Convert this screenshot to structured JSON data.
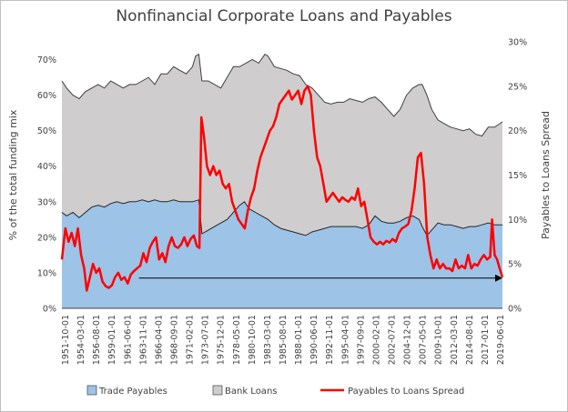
{
  "chart_data": {
    "type": "area",
    "title": "Nonfinancial Corporate Loans and Payables",
    "ylabel": "% of the total funding mix",
    "y2label": "Payables to Loans Spread",
    "ylim": [
      0,
      75
    ],
    "y2lim": [
      0,
      30
    ],
    "yticks": [
      "0%",
      "10%",
      "20%",
      "30%",
      "40%",
      "50%",
      "60%",
      "70%"
    ],
    "y2ticks": [
      "0%",
      "5%",
      "10%",
      "15%",
      "20%",
      "25%",
      "30%"
    ],
    "x_range": [
      1951.75,
      2021.75
    ],
    "xticks": [
      "1951-10-01",
      "1954-03-01",
      "1956-08-01",
      "1959-01-01",
      "1961-06-01",
      "1963-11-01",
      "1966-04-01",
      "1968-09-01",
      "1971-02-01",
      "1973-07-01",
      "1975-12-01",
      "1978-05-01",
      "1980-10-01",
      "1983-03-01",
      "1985-08-01",
      "1988-01-01",
      "1990-06-01",
      "1992-11-01",
      "1995-04-01",
      "1997-09-01",
      "2000-02-01",
      "2002-07-01",
      "2004-12-01",
      "2007-05-01",
      "2009-10-01",
      "2012-03-01",
      "2014-08-01",
      "2017-01-01",
      "2019-06-01"
    ],
    "legend_position": "bottom",
    "series": [
      {
        "name": "Trade Payables",
        "color": "#9dc3e6",
        "axis": "left",
        "points": [
          [
            1951.75,
            27
          ],
          [
            1952.5,
            26
          ],
          [
            1953.5,
            27
          ],
          [
            1954.5,
            25.5
          ],
          [
            1955.5,
            27
          ],
          [
            1956.5,
            28.5
          ],
          [
            1957.5,
            29
          ],
          [
            1958.5,
            28.5
          ],
          [
            1959.5,
            29.5
          ],
          [
            1960.5,
            30
          ],
          [
            1961.5,
            29.5
          ],
          [
            1962.5,
            30
          ],
          [
            1963.5,
            30
          ],
          [
            1964.5,
            30.5
          ],
          [
            1965.5,
            30
          ],
          [
            1966.5,
            30.5
          ],
          [
            1967.5,
            30
          ],
          [
            1968.5,
            30
          ],
          [
            1969.5,
            30.5
          ],
          [
            1970.5,
            30
          ],
          [
            1971.5,
            30
          ],
          [
            1972.5,
            30
          ],
          [
            1973.5,
            30.5
          ],
          [
            1974.0,
            21
          ],
          [
            1975.0,
            22
          ],
          [
            1976.0,
            23
          ],
          [
            1977.0,
            24
          ],
          [
            1978.0,
            25
          ],
          [
            1979.0,
            27
          ],
          [
            1980.0,
            29
          ],
          [
            1980.75,
            30
          ],
          [
            1981.5,
            28
          ],
          [
            1982.5,
            27
          ],
          [
            1983.5,
            26
          ],
          [
            1984.5,
            25
          ],
          [
            1985.5,
            23.5
          ],
          [
            1986.5,
            22.5
          ],
          [
            1987.5,
            22
          ],
          [
            1988.5,
            21.5
          ],
          [
            1989.5,
            21
          ],
          [
            1990.5,
            20.5
          ],
          [
            1991.5,
            21.5
          ],
          [
            1992.5,
            22
          ],
          [
            1993.5,
            22.5
          ],
          [
            1994.5,
            23
          ],
          [
            1995.5,
            23
          ],
          [
            1996.5,
            23
          ],
          [
            1997.5,
            23
          ],
          [
            1998.5,
            23
          ],
          [
            1999.5,
            22.5
          ],
          [
            2000.5,
            23.5
          ],
          [
            2001.5,
            26
          ],
          [
            2002.5,
            24.5
          ],
          [
            2003.5,
            24
          ],
          [
            2004.5,
            24
          ],
          [
            2005.5,
            24.5
          ],
          [
            2006.5,
            25.5
          ],
          [
            2007.5,
            26
          ],
          [
            2008.5,
            25
          ],
          [
            2009.0,
            23
          ],
          [
            2009.75,
            20.5
          ],
          [
            2010.5,
            22
          ],
          [
            2011.5,
            24
          ],
          [
            2012.5,
            23.5
          ],
          [
            2013.5,
            23.5
          ],
          [
            2014.5,
            23
          ],
          [
            2015.5,
            22.5
          ],
          [
            2016.5,
            23
          ],
          [
            2017.5,
            23
          ],
          [
            2018.5,
            23.5
          ],
          [
            2019.5,
            24
          ],
          [
            2020.5,
            23.5
          ],
          [
            2021.75,
            23.5
          ]
        ]
      },
      {
        "name": "Bank Loans",
        "color": "#cfcdcd",
        "axis": "left",
        "points": [
          [
            1951.75,
            64
          ],
          [
            1952.5,
            62
          ],
          [
            1953.5,
            60
          ],
          [
            1954.5,
            59
          ],
          [
            1955.5,
            61
          ],
          [
            1956.5,
            62
          ],
          [
            1957.5,
            63
          ],
          [
            1958.5,
            62
          ],
          [
            1959.5,
            64
          ],
          [
            1960.5,
            63
          ],
          [
            1961.5,
            62
          ],
          [
            1962.5,
            63
          ],
          [
            1963.5,
            63
          ],
          [
            1964.5,
            64
          ],
          [
            1965.5,
            65
          ],
          [
            1966.5,
            63
          ],
          [
            1967.5,
            66
          ],
          [
            1968.5,
            66
          ],
          [
            1969.5,
            68
          ],
          [
            1970.5,
            67
          ],
          [
            1971.5,
            66
          ],
          [
            1972.5,
            68
          ],
          [
            1973.0,
            71
          ],
          [
            1973.5,
            71.5
          ],
          [
            1974.0,
            64
          ],
          [
            1975.0,
            64
          ],
          [
            1976.0,
            63
          ],
          [
            1977.0,
            62
          ],
          [
            1978.0,
            65
          ],
          [
            1979.0,
            68
          ],
          [
            1980.0,
            68
          ],
          [
            1981.0,
            69
          ],
          [
            1982.0,
            70
          ],
          [
            1983.0,
            69
          ],
          [
            1984.0,
            71.5
          ],
          [
            1984.5,
            71
          ],
          [
            1985.5,
            68
          ],
          [
            1986.5,
            67.5
          ],
          [
            1987.5,
            67
          ],
          [
            1988.5,
            66
          ],
          [
            1989.5,
            65.5
          ],
          [
            1990.5,
            63
          ],
          [
            1991.5,
            62
          ],
          [
            1992.5,
            60
          ],
          [
            1993.5,
            58
          ],
          [
            1994.5,
            57.5
          ],
          [
            1995.5,
            58
          ],
          [
            1996.5,
            58
          ],
          [
            1997.5,
            59
          ],
          [
            1998.5,
            58.5
          ],
          [
            1999.5,
            58
          ],
          [
            2000.5,
            59
          ],
          [
            2001.5,
            59.5
          ],
          [
            2002.5,
            58
          ],
          [
            2003.5,
            56
          ],
          [
            2004.5,
            54
          ],
          [
            2005.5,
            56
          ],
          [
            2006.5,
            60
          ],
          [
            2007.5,
            62
          ],
          [
            2008.5,
            63
          ],
          [
            2009.0,
            63
          ],
          [
            2009.75,
            60
          ],
          [
            2010.5,
            56
          ],
          [
            2011.5,
            53
          ],
          [
            2012.5,
            52
          ],
          [
            2013.5,
            51
          ],
          [
            2014.5,
            50.5
          ],
          [
            2015.5,
            50
          ],
          [
            2016.5,
            50.5
          ],
          [
            2017.5,
            49
          ],
          [
            2018.5,
            48.5
          ],
          [
            2019.5,
            51
          ],
          [
            2020.5,
            51
          ],
          [
            2021.75,
            52.5
          ]
        ]
      },
      {
        "name": "Payables to Loans Spread",
        "color": "#ff0000",
        "axis": "right",
        "points": [
          [
            1951.75,
            5.5
          ],
          [
            1952.3,
            9
          ],
          [
            1952.8,
            7.5
          ],
          [
            1953.3,
            8.5
          ],
          [
            1953.8,
            7
          ],
          [
            1954.3,
            9
          ],
          [
            1954.8,
            6
          ],
          [
            1955.3,
            4.5
          ],
          [
            1955.7,
            2
          ],
          [
            1956.2,
            3.5
          ],
          [
            1956.7,
            5
          ],
          [
            1957.2,
            4
          ],
          [
            1957.7,
            4.5
          ],
          [
            1958.2,
            3
          ],
          [
            1958.7,
            2.5
          ],
          [
            1959.2,
            2.3
          ],
          [
            1959.7,
            2.6
          ],
          [
            1960.2,
            3.5
          ],
          [
            1960.7,
            4
          ],
          [
            1961.2,
            3.2
          ],
          [
            1961.7,
            3.5
          ],
          [
            1962.2,
            2.8
          ],
          [
            1962.7,
            3.8
          ],
          [
            1963.2,
            4.2
          ],
          [
            1963.7,
            4.5
          ],
          [
            1964.2,
            4.8
          ],
          [
            1964.7,
            6.2
          ],
          [
            1965.2,
            5.2
          ],
          [
            1965.7,
            6.8
          ],
          [
            1966.2,
            7.5
          ],
          [
            1966.7,
            8
          ],
          [
            1967.2,
            5.5
          ],
          [
            1967.7,
            6.2
          ],
          [
            1968.2,
            5.2
          ],
          [
            1968.7,
            7
          ],
          [
            1969.2,
            8
          ],
          [
            1969.7,
            7
          ],
          [
            1970.2,
            6.8
          ],
          [
            1970.7,
            7.2
          ],
          [
            1971.2,
            8
          ],
          [
            1971.7,
            7
          ],
          [
            1972.2,
            7.8
          ],
          [
            1972.7,
            8.2
          ],
          [
            1973.2,
            7
          ],
          [
            1973.6,
            6.8
          ],
          [
            1973.9,
            21.5
          ],
          [
            1974.3,
            19.5
          ],
          [
            1974.8,
            16
          ],
          [
            1975.3,
            15
          ],
          [
            1975.8,
            16
          ],
          [
            1976.3,
            15
          ],
          [
            1976.8,
            15.5
          ],
          [
            1977.3,
            14
          ],
          [
            1977.8,
            13.5
          ],
          [
            1978.3,
            14
          ],
          [
            1978.8,
            12
          ],
          [
            1979.3,
            11
          ],
          [
            1979.8,
            10
          ],
          [
            1980.3,
            9.5
          ],
          [
            1980.8,
            9
          ],
          [
            1981.3,
            11
          ],
          [
            1981.8,
            12.5
          ],
          [
            1982.3,
            13.5
          ],
          [
            1982.8,
            15.5
          ],
          [
            1983.3,
            17
          ],
          [
            1983.8,
            18
          ],
          [
            1984.3,
            19
          ],
          [
            1984.8,
            20
          ],
          [
            1985.3,
            20.5
          ],
          [
            1985.8,
            21.5
          ],
          [
            1986.3,
            23
          ],
          [
            1986.8,
            23.5
          ],
          [
            1987.3,
            24
          ],
          [
            1987.8,
            24.5
          ],
          [
            1988.3,
            23.5
          ],
          [
            1988.8,
            24
          ],
          [
            1989.3,
            24.5
          ],
          [
            1989.8,
            23
          ],
          [
            1990.3,
            24.5
          ],
          [
            1990.8,
            25
          ],
          [
            1991.3,
            24
          ],
          [
            1991.8,
            20
          ],
          [
            1992.3,
            17
          ],
          [
            1992.8,
            16
          ],
          [
            1993.3,
            14
          ],
          [
            1993.8,
            12
          ],
          [
            1994.3,
            12.5
          ],
          [
            1994.8,
            13
          ],
          [
            1995.3,
            12.5
          ],
          [
            1995.8,
            12
          ],
          [
            1996.3,
            12.5
          ],
          [
            1996.8,
            12.2
          ],
          [
            1997.3,
            12
          ],
          [
            1997.8,
            12.5
          ],
          [
            1998.3,
            12.2
          ],
          [
            1998.8,
            13.5
          ],
          [
            1999.3,
            11.5
          ],
          [
            1999.8,
            12
          ],
          [
            2000.3,
            10
          ],
          [
            2000.8,
            8
          ],
          [
            2001.3,
            7.5
          ],
          [
            2001.8,
            7.2
          ],
          [
            2002.3,
            7.5
          ],
          [
            2002.8,
            7.2
          ],
          [
            2003.3,
            7.6
          ],
          [
            2003.8,
            7.4
          ],
          [
            2004.3,
            7.8
          ],
          [
            2004.8,
            7.5
          ],
          [
            2005.3,
            8.5
          ],
          [
            2005.8,
            9
          ],
          [
            2006.3,
            9.2
          ],
          [
            2006.8,
            9.5
          ],
          [
            2007.3,
            11
          ],
          [
            2007.8,
            13.5
          ],
          [
            2008.3,
            17
          ],
          [
            2008.8,
            17.5
          ],
          [
            2009.3,
            14
          ],
          [
            2009.8,
            8
          ],
          [
            2010.3,
            6
          ],
          [
            2010.8,
            4.5
          ],
          [
            2011.3,
            5.5
          ],
          [
            2011.8,
            4.5
          ],
          [
            2012.3,
            5
          ],
          [
            2012.8,
            4.5
          ],
          [
            2013.3,
            4.5
          ],
          [
            2013.8,
            4.2
          ],
          [
            2014.3,
            5.5
          ],
          [
            2014.8,
            4.5
          ],
          [
            2015.3,
            4.8
          ],
          [
            2015.8,
            4.5
          ],
          [
            2016.3,
            6
          ],
          [
            2016.8,
            4.5
          ],
          [
            2017.3,
            5
          ],
          [
            2017.8,
            4.8
          ],
          [
            2018.3,
            5.5
          ],
          [
            2018.8,
            6
          ],
          [
            2019.3,
            5.5
          ],
          [
            2019.8,
            5.8
          ],
          [
            2020.1,
            10
          ],
          [
            2020.5,
            6
          ],
          [
            2020.9,
            5.5
          ],
          [
            2021.3,
            4.5
          ],
          [
            2021.75,
            3.5
          ]
        ]
      }
    ],
    "annotations": [
      {
        "type": "arrow",
        "x": [
          1964.0,
          2021.75
        ],
        "y2": [
          3.4,
          3.4
        ],
        "color": "#000000"
      }
    ]
  }
}
